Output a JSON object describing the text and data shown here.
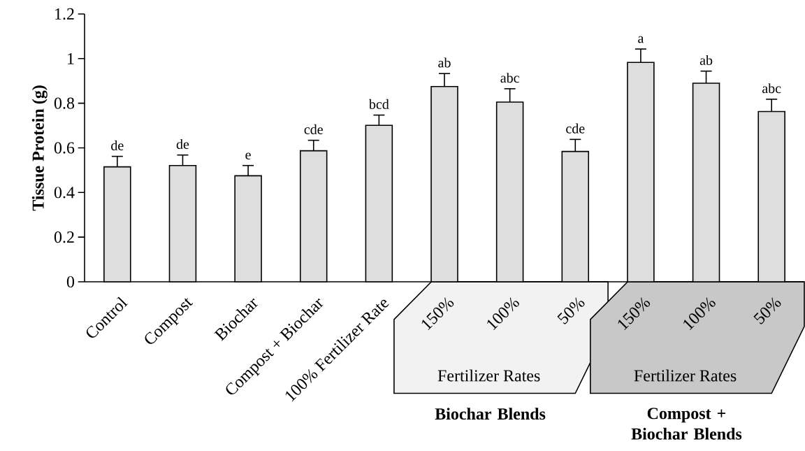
{
  "chart_data": {
    "type": "bar",
    "ylabel": "Tissue Protein (g)",
    "categories": [
      "Control",
      "Compost",
      "Biochar",
      "Compost + Biochar",
      "100% Fertilizer Rate",
      "150%",
      "100%",
      "50%",
      "150%",
      "100%",
      "50%"
    ],
    "values": [
      0.515,
      0.521,
      0.475,
      0.587,
      0.701,
      0.875,
      0.805,
      0.584,
      0.983,
      0.89,
      0.763
    ],
    "errors": [
      0.047,
      0.047,
      0.046,
      0.047,
      0.046,
      0.058,
      0.06,
      0.054,
      0.06,
      0.054,
      0.055
    ],
    "value_labels": [
      "de",
      "de",
      "e",
      "cde",
      "bcd",
      "ab",
      "abc",
      "cde",
      "a",
      "ab",
      "abc"
    ],
    "color": "#dedede",
    "ylim": [
      0,
      1.2
    ],
    "yticks": [
      0,
      0.2,
      0.4,
      0.6,
      0.8,
      1,
      1.2
    ],
    "annotations": [
      "Fertilizer Rates",
      "Fertilizer Rates",
      "Biochar Blends",
      "Compost + Biochar Blends"
    ],
    "grid": false
  }
}
